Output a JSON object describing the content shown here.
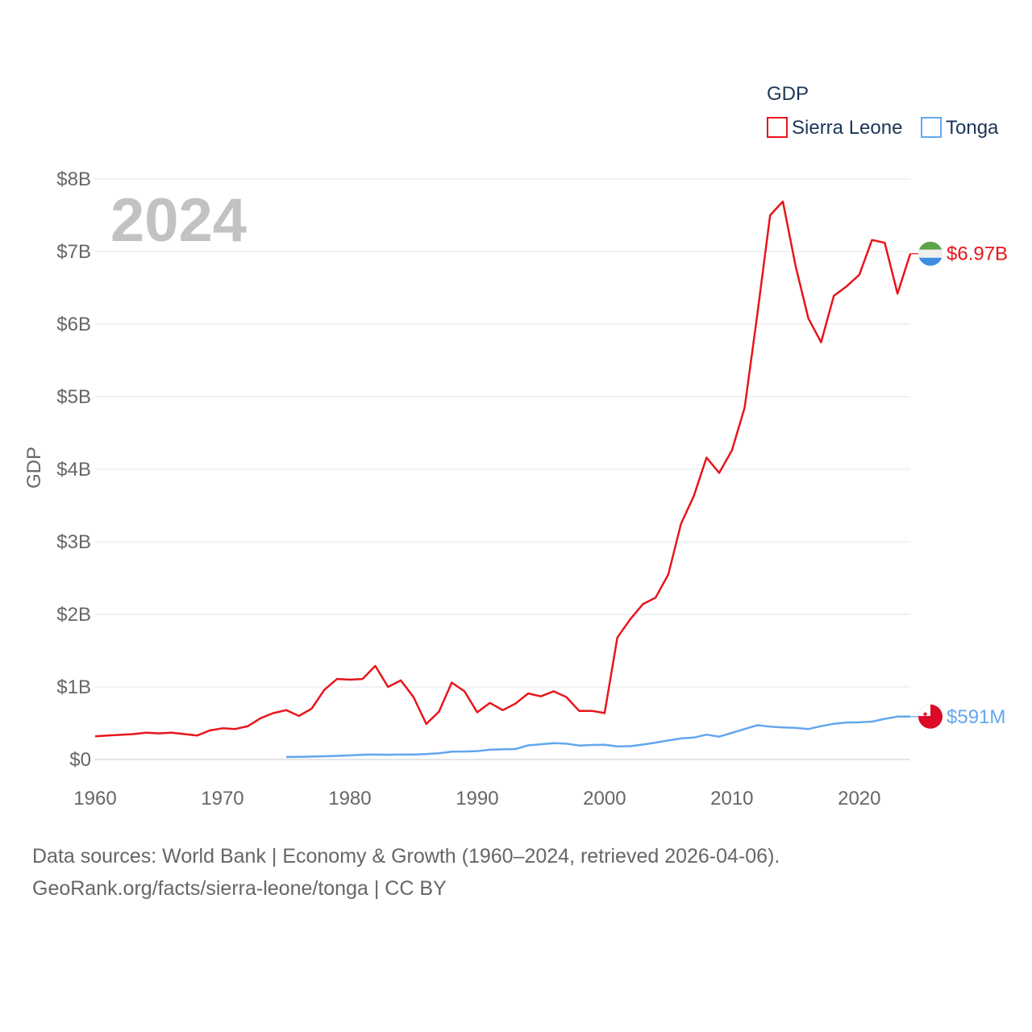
{
  "chart_data": {
    "type": "line",
    "year_label": "2024",
    "ylabel": "GDP",
    "xlabel": "",
    "legend": {
      "title": "GDP",
      "placement": "top-right"
    },
    "ylim": [
      0,
      8000000000
    ],
    "xlim": [
      1960,
      2024
    ],
    "y_ticks": [
      {
        "value": 0,
        "label": "$0"
      },
      {
        "value": 1000000000,
        "label": "$1B"
      },
      {
        "value": 2000000000,
        "label": "$2B"
      },
      {
        "value": 3000000000,
        "label": "$3B"
      },
      {
        "value": 4000000000,
        "label": "$4B"
      },
      {
        "value": 5000000000,
        "label": "$5B"
      },
      {
        "value": 6000000000,
        "label": "$6B"
      },
      {
        "value": 7000000000,
        "label": "$7B"
      },
      {
        "value": 8000000000,
        "label": "$8B"
      }
    ],
    "x_ticks": [
      {
        "value": 1960,
        "label": "1960"
      },
      {
        "value": 1970,
        "label": "1970"
      },
      {
        "value": 1980,
        "label": "1980"
      },
      {
        "value": 1990,
        "label": "1990"
      },
      {
        "value": 2000,
        "label": "2000"
      },
      {
        "value": 2010,
        "label": "2010"
      },
      {
        "value": 2020,
        "label": "2020"
      }
    ],
    "grid": true,
    "series": [
      {
        "name": "Sierra Leone",
        "color": "#e8151b",
        "end_label": "$6.97B",
        "flag": "sierra-leone-flag-icon",
        "flag_colors": [
          "#5da34a",
          "#f0f0f0",
          "#3d8ee0"
        ],
        "points": [
          [
            1960,
            0.32
          ],
          [
            1961,
            0.33
          ],
          [
            1962,
            0.34
          ],
          [
            1963,
            0.35
          ],
          [
            1964,
            0.37
          ],
          [
            1965,
            0.36
          ],
          [
            1966,
            0.37
          ],
          [
            1967,
            0.35
          ],
          [
            1968,
            0.33
          ],
          [
            1969,
            0.4
          ],
          [
            1970,
            0.43
          ],
          [
            1971,
            0.42
          ],
          [
            1972,
            0.46
          ],
          [
            1973,
            0.57
          ],
          [
            1974,
            0.64
          ],
          [
            1975,
            0.68
          ],
          [
            1976,
            0.6
          ],
          [
            1977,
            0.7
          ],
          [
            1978,
            0.96
          ],
          [
            1979,
            1.11
          ],
          [
            1980,
            1.1
          ],
          [
            1981,
            1.11
          ],
          [
            1982,
            1.29
          ],
          [
            1983,
            1.0
          ],
          [
            1984,
            1.09
          ],
          [
            1985,
            0.86
          ],
          [
            1986,
            0.49
          ],
          [
            1987,
            0.66
          ],
          [
            1988,
            1.06
          ],
          [
            1989,
            0.94
          ],
          [
            1990,
            0.65
          ],
          [
            1991,
            0.78
          ],
          [
            1992,
            0.68
          ],
          [
            1993,
            0.77
          ],
          [
            1994,
            0.91
          ],
          [
            1995,
            0.87
          ],
          [
            1996,
            0.94
          ],
          [
            1997,
            0.86
          ],
          [
            1998,
            0.67
          ],
          [
            1999,
            0.67
          ],
          [
            2000,
            0.64
          ],
          [
            2001,
            1.68
          ],
          [
            2002,
            1.93
          ],
          [
            2003,
            2.14
          ],
          [
            2004,
            2.23
          ],
          [
            2005,
            2.55
          ],
          [
            2006,
            3.25
          ],
          [
            2007,
            3.63
          ],
          [
            2008,
            4.16
          ],
          [
            2009,
            3.95
          ],
          [
            2010,
            4.26
          ],
          [
            2011,
            4.85
          ],
          [
            2012,
            6.14
          ],
          [
            2013,
            7.5
          ],
          [
            2014,
            7.69
          ],
          [
            2015,
            6.8
          ],
          [
            2016,
            6.08
          ],
          [
            2017,
            5.75
          ],
          [
            2018,
            6.39
          ],
          [
            2019,
            6.52
          ],
          [
            2020,
            6.68
          ],
          [
            2021,
            7.16
          ],
          [
            2022,
            7.12
          ],
          [
            2023,
            6.42
          ],
          [
            2024,
            6.97
          ]
        ]
      },
      {
        "name": "Tonga",
        "color": "#63a7ec",
        "end_label": "$591M",
        "flag": "tonga-flag-icon",
        "flag_colors": [
          "#dc0a27",
          "#ffffff"
        ],
        "points": [
          [
            1975,
            0.035
          ],
          [
            1976,
            0.036
          ],
          [
            1977,
            0.04
          ],
          [
            1978,
            0.045
          ],
          [
            1979,
            0.05
          ],
          [
            1980,
            0.057
          ],
          [
            1981,
            0.065
          ],
          [
            1982,
            0.068
          ],
          [
            1983,
            0.066
          ],
          [
            1984,
            0.068
          ],
          [
            1985,
            0.068
          ],
          [
            1986,
            0.074
          ],
          [
            1987,
            0.087
          ],
          [
            1988,
            0.109
          ],
          [
            1989,
            0.11
          ],
          [
            1990,
            0.116
          ],
          [
            1991,
            0.135
          ],
          [
            1992,
            0.14
          ],
          [
            1993,
            0.143
          ],
          [
            1994,
            0.195
          ],
          [
            1995,
            0.21
          ],
          [
            1996,
            0.225
          ],
          [
            1997,
            0.218
          ],
          [
            1998,
            0.192
          ],
          [
            1999,
            0.2
          ],
          [
            2000,
            0.203
          ],
          [
            2001,
            0.18
          ],
          [
            2002,
            0.183
          ],
          [
            2003,
            0.206
          ],
          [
            2004,
            0.232
          ],
          [
            2005,
            0.262
          ],
          [
            2006,
            0.29
          ],
          [
            2007,
            0.302
          ],
          [
            2008,
            0.342
          ],
          [
            2009,
            0.314
          ],
          [
            2010,
            0.367
          ],
          [
            2011,
            0.42
          ],
          [
            2012,
            0.472
          ],
          [
            2013,
            0.452
          ],
          [
            2014,
            0.441
          ],
          [
            2015,
            0.436
          ],
          [
            2016,
            0.42
          ],
          [
            2017,
            0.459
          ],
          [
            2018,
            0.492
          ],
          [
            2019,
            0.51
          ],
          [
            2020,
            0.512
          ],
          [
            2021,
            0.522
          ],
          [
            2022,
            0.56
          ],
          [
            2023,
            0.591
          ],
          [
            2024,
            0.591
          ]
        ]
      }
    ]
  },
  "footer": {
    "line1": "Data sources: World Bank | Economy & Growth (1960–2024, retrieved 2026-04-06).",
    "line2": "GeoRank.org/facts/sierra-leone/tonga | CC BY"
  }
}
